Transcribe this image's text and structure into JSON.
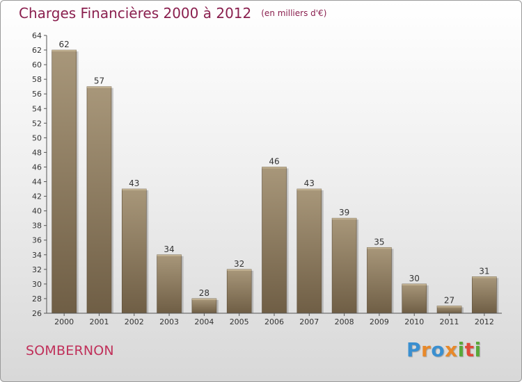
{
  "header": {
    "title": "Charges Financières 2000 à 2012",
    "unit": "(en milliers d'€)"
  },
  "footer": {
    "place": "SOMBERNON",
    "logo": "Proxiti",
    "logo_letters": [
      {
        "ch": "P",
        "color": "#3a8fd0"
      },
      {
        "ch": "r",
        "color": "#e8892a"
      },
      {
        "ch": "o",
        "color": "#3a8fd0"
      },
      {
        "ch": "x",
        "color": "#e8892a"
      },
      {
        "ch": "i",
        "color": "#5aa83a"
      },
      {
        "ch": "t",
        "color": "#e04a3a"
      },
      {
        "ch": "i",
        "color": "#5aa83a"
      }
    ]
  },
  "chart_data": {
    "type": "bar",
    "categories": [
      "2000",
      "2001",
      "2002",
      "2003",
      "2004",
      "2005",
      "2006",
      "2007",
      "2008",
      "2009",
      "2010",
      "2011",
      "2012"
    ],
    "values": [
      62,
      57,
      43,
      34,
      28,
      32,
      46,
      43,
      39,
      35,
      30,
      27,
      31
    ],
    "ylim": [
      26,
      64
    ],
    "ytick_step": 2,
    "grid": false,
    "bar_color": "#8a785d",
    "bar_color_light": "#a8977a"
  }
}
